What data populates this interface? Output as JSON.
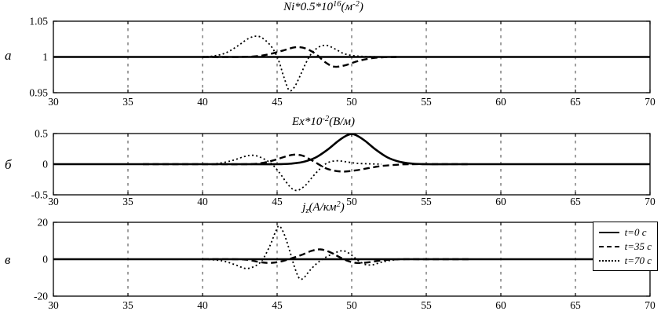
{
  "figure": {
    "background": "#ffffff",
    "axis_color": "#000000",
    "grid_color": "#404040"
  },
  "legend": {
    "position": "top-right-of-panel-в",
    "entries": [
      {
        "label": "t=0 с",
        "style": "solid"
      },
      {
        "label": "t=35 с",
        "style": "dashed"
      },
      {
        "label": "t=70 с",
        "style": "dotted"
      }
    ]
  },
  "chart_data": [
    {
      "type": "line",
      "panel_label": "а",
      "title_segments": [
        {
          "t": "Ni*0.5*10"
        },
        {
          "t": "16",
          "s": "sup"
        },
        {
          "t": "(м"
        },
        {
          "t": "-2",
          "s": "sup"
        },
        {
          "t": ")"
        }
      ],
      "xlim": [
        30,
        70
      ],
      "xticks": [
        30,
        35,
        40,
        45,
        50,
        55,
        60,
        65,
        70
      ],
      "xtick_labels": [
        "30",
        "35",
        "40",
        "45",
        "50",
        "55",
        "60",
        "65",
        "70"
      ],
      "ylim": [
        0.95,
        1.05
      ],
      "yticks": [
        0.95,
        1,
        1.05
      ],
      "ytick_labels": [
        "0.95",
        "1",
        "1.05"
      ],
      "grid": true,
      "series": [
        {
          "name": "t=0 с",
          "style": "solid",
          "points": [
            [
              30,
              1
            ],
            [
              70,
              1
            ]
          ]
        },
        {
          "name": "t=35 с",
          "style": "dashed",
          "points": [
            [
              40,
              1
            ],
            [
              42.5,
              1
            ],
            [
              43.6,
              1.001
            ],
            [
              44.5,
              1.004
            ],
            [
              45.4,
              1.009
            ],
            [
              46.2,
              1.0135
            ],
            [
              46.9,
              1.012
            ],
            [
              47.6,
              1.004
            ],
            [
              48.2,
              0.993
            ],
            [
              48.8,
              0.9865
            ],
            [
              49.5,
              0.988
            ],
            [
              50.3,
              0.9935
            ],
            [
              51.1,
              0.9975
            ],
            [
              52,
              0.9995
            ],
            [
              53,
              1
            ]
          ]
        },
        {
          "name": "t=70 с",
          "style": "dotted",
          "points": [
            [
              40,
              1
            ],
            [
              40.8,
              1.0015
            ],
            [
              41.6,
              1.006
            ],
            [
              42.4,
              1.016
            ],
            [
              43.1,
              1.026
            ],
            [
              43.7,
              1.029
            ],
            [
              44.2,
              1.0235
            ],
            [
              44.7,
              1.012
            ],
            [
              45.1,
              0.995
            ],
            [
              45.45,
              0.972
            ],
            [
              45.8,
              0.9535
            ],
            [
              46.15,
              0.9575
            ],
            [
              46.55,
              0.974
            ],
            [
              46.95,
              0.9925
            ],
            [
              47.35,
              1.006
            ],
            [
              47.85,
              1.0145
            ],
            [
              48.35,
              1.016
            ],
            [
              48.9,
              1.011
            ],
            [
              49.5,
              1.0045
            ],
            [
              50.2,
              1.0015
            ],
            [
              51,
              1.0005
            ],
            [
              52,
              1
            ]
          ]
        }
      ]
    },
    {
      "type": "line",
      "panel_label": "б",
      "title_segments": [
        {
          "t": "Ex*10"
        },
        {
          "t": "-2",
          "s": "sup"
        },
        {
          "t": "(В/м)"
        }
      ],
      "xlim": [
        30,
        70
      ],
      "xticks": [
        30,
        35,
        40,
        45,
        50,
        55,
        60,
        65,
        70
      ],
      "xtick_labels": [
        "30",
        "35",
        "40",
        "45",
        "50",
        "55",
        "60",
        "65",
        "70"
      ],
      "ylim": [
        -0.5,
        0.5
      ],
      "yticks": [
        -0.5,
        0,
        0.5
      ],
      "ytick_labels": [
        "-0.5",
        "0",
        "0.5"
      ],
      "grid": true,
      "series": [
        {
          "name": "t=0 с",
          "style": "solid",
          "points": [
            [
              30,
              0
            ],
            [
              42,
              0
            ],
            [
              45,
              0
            ],
            [
              46,
              0.01
            ],
            [
              46.8,
              0.04
            ],
            [
              47.6,
              0.11
            ],
            [
              48.4,
              0.24
            ],
            [
              49.1,
              0.38
            ],
            [
              49.6,
              0.46
            ],
            [
              50,
              0.495
            ],
            [
              50.4,
              0.46
            ],
            [
              50.9,
              0.38
            ],
            [
              51.6,
              0.24
            ],
            [
              52.4,
              0.11
            ],
            [
              53.2,
              0.04
            ],
            [
              54,
              0.01
            ],
            [
              55,
              0
            ],
            [
              58,
              0
            ],
            [
              70,
              0
            ]
          ]
        },
        {
          "name": "t=35 с",
          "style": "dashed",
          "points": [
            [
              36,
              0
            ],
            [
              40,
              0
            ],
            [
              43,
              0
            ],
            [
              44,
              0.02
            ],
            [
              44.8,
              0.065
            ],
            [
              45.5,
              0.12
            ],
            [
              46.1,
              0.155
            ],
            [
              46.7,
              0.14
            ],
            [
              47.2,
              0.08
            ],
            [
              47.7,
              0.01
            ],
            [
              48.2,
              -0.06
            ],
            [
              48.8,
              -0.105
            ],
            [
              49.5,
              -0.12
            ],
            [
              50.3,
              -0.1
            ],
            [
              51.1,
              -0.065
            ],
            [
              52,
              -0.03
            ],
            [
              53,
              -0.01
            ],
            [
              54,
              0
            ],
            [
              58,
              0
            ]
          ]
        },
        {
          "name": "t=70 с",
          "style": "dotted",
          "points": [
            [
              36,
              0
            ],
            [
              40,
              0
            ],
            [
              41,
              0.01
            ],
            [
              42,
              0.06
            ],
            [
              42.8,
              0.125
            ],
            [
              43.4,
              0.145
            ],
            [
              44,
              0.1
            ],
            [
              44.6,
              0.01
            ],
            [
              45.1,
              -0.12
            ],
            [
              45.6,
              -0.29
            ],
            [
              46,
              -0.4
            ],
            [
              46.4,
              -0.425
            ],
            [
              46.9,
              -0.345
            ],
            [
              47.4,
              -0.2
            ],
            [
              47.9,
              -0.07
            ],
            [
              48.4,
              0.025
            ],
            [
              49,
              0.055
            ],
            [
              49.6,
              0.04
            ],
            [
              50.3,
              0.015
            ],
            [
              51.2,
              0.005
            ],
            [
              52,
              0
            ]
          ]
        }
      ]
    },
    {
      "type": "line",
      "panel_label": "в",
      "title_segments": [
        {
          "t": "j"
        },
        {
          "t": "z",
          "s": "sub"
        },
        {
          "t": "(А/км"
        },
        {
          "t": "2",
          "s": "sup"
        },
        {
          "t": ")"
        }
      ],
      "xlim": [
        30,
        70
      ],
      "xticks": [
        30,
        35,
        40,
        45,
        50,
        55,
        60,
        65,
        70
      ],
      "xtick_labels": [
        "30",
        "35",
        "40",
        "45",
        "50",
        "55",
        "60",
        "65",
        "70"
      ],
      "ylim": [
        -20,
        20
      ],
      "yticks": [
        -20,
        0,
        20
      ],
      "ytick_labels": [
        "-20",
        "0",
        "20"
      ],
      "grid": true,
      "series": [
        {
          "name": "t=0 с",
          "style": "solid",
          "points": [
            [
              30,
              0
            ],
            [
              70,
              0
            ]
          ]
        },
        {
          "name": "t=35 с",
          "style": "dashed",
          "points": [
            [
              40,
              0
            ],
            [
              42,
              0
            ],
            [
              43,
              -0.3
            ],
            [
              43.8,
              -1.5
            ],
            [
              44.5,
              -2
            ],
            [
              45.2,
              -1.3
            ],
            [
              45.9,
              0.3
            ],
            [
              46.6,
              2.2
            ],
            [
              47.3,
              4.5
            ],
            [
              47.9,
              5.3
            ],
            [
              48.5,
              4
            ],
            [
              49.1,
              1.5
            ],
            [
              49.7,
              -0.8
            ],
            [
              50.3,
              -2
            ],
            [
              51,
              -1.8
            ],
            [
              51.8,
              -0.8
            ],
            [
              52.6,
              -0.2
            ],
            [
              53.5,
              0
            ],
            [
              55,
              0
            ],
            [
              58,
              0
            ]
          ]
        },
        {
          "name": "t=70 с",
          "style": "dotted",
          "points": [
            [
              30,
              0
            ],
            [
              39,
              0
            ],
            [
              40.5,
              -0.2
            ],
            [
              41.4,
              -1
            ],
            [
              42.2,
              -3
            ],
            [
              42.9,
              -5
            ],
            [
              43.5,
              -3.8
            ],
            [
              44,
              -0.5
            ],
            [
              44.5,
              7
            ],
            [
              44.9,
              15
            ],
            [
              45.15,
              18
            ],
            [
              45.5,
              13
            ],
            [
              45.9,
              3
            ],
            [
              46.2,
              -5
            ],
            [
              46.5,
              -10.5
            ],
            [
              46.8,
              -10
            ],
            [
              47.2,
              -6
            ],
            [
              47.7,
              -2
            ],
            [
              48.2,
              0.8
            ],
            [
              48.8,
              3.2
            ],
            [
              49.4,
              4.6
            ],
            [
              49.9,
              2.8
            ],
            [
              50.4,
              -0.5
            ],
            [
              50.9,
              -2.8
            ],
            [
              51.4,
              -3
            ],
            [
              52,
              -1.6
            ],
            [
              52.7,
              -0.5
            ],
            [
              53.5,
              0
            ],
            [
              55,
              0
            ],
            [
              58,
              0
            ]
          ]
        }
      ]
    }
  ]
}
